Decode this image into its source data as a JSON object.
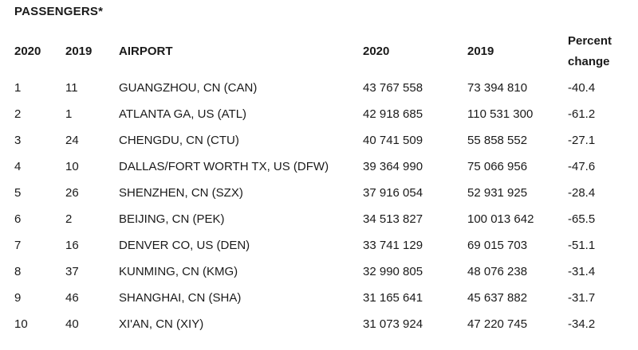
{
  "title": "PASSENGERS*",
  "headers": {
    "rank_2020": "2020",
    "rank_2019": "2019",
    "airport": "AIRPORT",
    "passengers_2020": "2020",
    "passengers_2019": "2019",
    "percent_line1": "Percent",
    "percent_line2": "change"
  },
  "rows": [
    {
      "rank_2020": "1",
      "rank_2019": "11",
      "airport": "GUANGZHOU, CN (CAN)",
      "passengers_2020": "43 767 558",
      "passengers_2019": "73 394 810",
      "percent_change": "-40.4"
    },
    {
      "rank_2020": "2",
      "rank_2019": "1",
      "airport": "ATLANTA GA, US (ATL)",
      "passengers_2020": "42 918 685",
      "passengers_2019": "110 531 300",
      "percent_change": "-61.2"
    },
    {
      "rank_2020": "3",
      "rank_2019": "24",
      "airport": "CHENGDU, CN (CTU)",
      "passengers_2020": "40 741 509",
      "passengers_2019": "55 858 552",
      "percent_change": "-27.1"
    },
    {
      "rank_2020": "4",
      "rank_2019": "10",
      "airport": "DALLAS/FORT WORTH TX, US (DFW)",
      "passengers_2020": "39 364 990",
      "passengers_2019": "75 066 956",
      "percent_change": "-47.6"
    },
    {
      "rank_2020": "5",
      "rank_2019": "26",
      "airport": "SHENZHEN, CN (SZX)",
      "passengers_2020": "37 916 054",
      "passengers_2019": "52 931 925",
      "percent_change": "-28.4"
    },
    {
      "rank_2020": "6",
      "rank_2019": "2",
      "airport": "BEIJING, CN (PEK)",
      "passengers_2020": "34 513 827",
      "passengers_2019": "100 013 642",
      "percent_change": "-65.5"
    },
    {
      "rank_2020": "7",
      "rank_2019": "16",
      "airport": "DENVER CO, US (DEN)",
      "passengers_2020": "33 741 129",
      "passengers_2019": "69 015 703",
      "percent_change": "-51.1"
    },
    {
      "rank_2020": "8",
      "rank_2019": "37",
      "airport": "KUNMING, CN (KMG)",
      "passengers_2020": "32 990 805",
      "passengers_2019": "48 076 238",
      "percent_change": "-31.4"
    },
    {
      "rank_2020": "9",
      "rank_2019": "46",
      "airport": "SHANGHAI, CN (SHA)",
      "passengers_2020": "31 165 641",
      "passengers_2019": "45 637 882",
      "percent_change": "-31.7"
    },
    {
      "rank_2020": "10",
      "rank_2019": "40",
      "airport": "XI'AN, CN (XIY)",
      "passengers_2020": "31 073 924",
      "passengers_2019": "47 220 745",
      "percent_change": "-34.2"
    }
  ]
}
